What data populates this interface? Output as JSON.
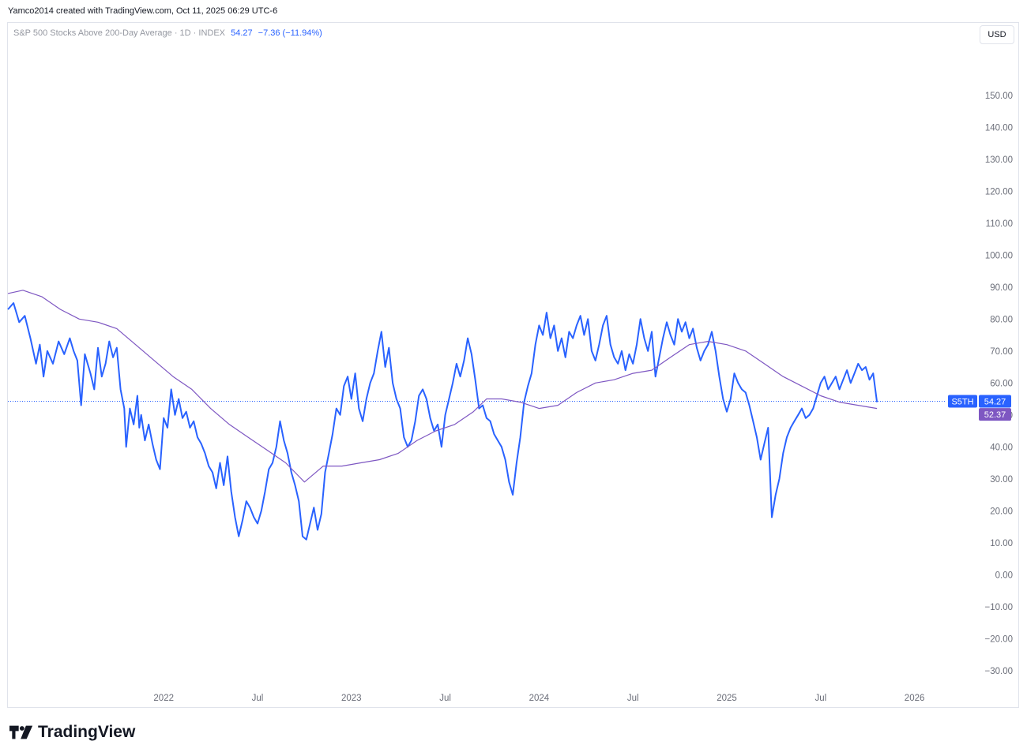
{
  "credit": "Yamco2014 created with TradingView.com, Oct 11, 2025 06:29 UTC-6",
  "legend": {
    "title": "S&P 500 Stocks Above 200-Day Average · 1D · INDEX",
    "last": "54.27",
    "change": "−7.36 (−11.94%)"
  },
  "currency_button": "USD",
  "brand": "TradingView",
  "colors": {
    "price": "#2962ff",
    "ma": "#7e57c2",
    "grid_border": "#e0e3eb",
    "axis_text": "#6a6d78"
  },
  "chart_data": {
    "type": "line",
    "y_range": [
      -35,
      165
    ],
    "y_ticks": [
      "150.00",
      "140.00",
      "130.00",
      "120.00",
      "110.00",
      "100.00",
      "90.00",
      "80.00",
      "70.00",
      "60.00",
      "50.00",
      "40.00",
      "30.00",
      "20.00",
      "10.00",
      "0.00",
      "−10.00",
      "−20.00",
      "−30.00"
    ],
    "y_tick_values": [
      150,
      140,
      130,
      120,
      110,
      100,
      90,
      80,
      70,
      60,
      50,
      40,
      30,
      20,
      10,
      0,
      -10,
      -20,
      -30
    ],
    "x_range": [
      2021.17,
      2026.17
    ],
    "x_ticks": [
      {
        "label": "2022",
        "t": 2022.0
      },
      {
        "label": "Jul",
        "t": 2022.5
      },
      {
        "label": "2023",
        "t": 2023.0
      },
      {
        "label": "Jul",
        "t": 2023.5
      },
      {
        "label": "2024",
        "t": 2024.0
      },
      {
        "label": "Jul",
        "t": 2024.5
      },
      {
        "label": "2025",
        "t": 2025.0
      },
      {
        "label": "Jul",
        "t": 2025.5
      },
      {
        "label": "2026",
        "t": 2026.0
      }
    ],
    "current_line_value": 54.27,
    "series": [
      {
        "name": "S5TH",
        "label_value": "54.27",
        "color": "#2962ff",
        "points": [
          [
            2021.17,
            83
          ],
          [
            2021.2,
            85
          ],
          [
            2021.23,
            79
          ],
          [
            2021.26,
            81
          ],
          [
            2021.29,
            74
          ],
          [
            2021.32,
            66
          ],
          [
            2021.34,
            72
          ],
          [
            2021.36,
            62
          ],
          [
            2021.38,
            70
          ],
          [
            2021.41,
            66
          ],
          [
            2021.44,
            73
          ],
          [
            2021.47,
            69
          ],
          [
            2021.5,
            74
          ],
          [
            2021.52,
            70
          ],
          [
            2021.54,
            67
          ],
          [
            2021.56,
            53
          ],
          [
            2021.58,
            69
          ],
          [
            2021.61,
            63
          ],
          [
            2021.63,
            58
          ],
          [
            2021.65,
            71
          ],
          [
            2021.67,
            62
          ],
          [
            2021.69,
            66
          ],
          [
            2021.71,
            73
          ],
          [
            2021.73,
            68
          ],
          [
            2021.75,
            71
          ],
          [
            2021.77,
            58
          ],
          [
            2021.79,
            52
          ],
          [
            2021.8,
            40
          ],
          [
            2021.82,
            52
          ],
          [
            2021.84,
            47
          ],
          [
            2021.86,
            56
          ],
          [
            2021.87,
            46
          ],
          [
            2021.88,
            50
          ],
          [
            2021.9,
            42
          ],
          [
            2021.92,
            47
          ],
          [
            2021.94,
            41
          ],
          [
            2021.96,
            36
          ],
          [
            2021.98,
            33
          ],
          [
            2022.0,
            49
          ],
          [
            2022.02,
            46
          ],
          [
            2022.04,
            58
          ],
          [
            2022.06,
            50
          ],
          [
            2022.08,
            55
          ],
          [
            2022.1,
            49
          ],
          [
            2022.12,
            51
          ],
          [
            2022.14,
            46
          ],
          [
            2022.16,
            48
          ],
          [
            2022.18,
            43
          ],
          [
            2022.2,
            41
          ],
          [
            2022.22,
            38
          ],
          [
            2022.24,
            34
          ],
          [
            2022.26,
            32
          ],
          [
            2022.28,
            27
          ],
          [
            2022.3,
            35
          ],
          [
            2022.32,
            28
          ],
          [
            2022.34,
            37
          ],
          [
            2022.36,
            26
          ],
          [
            2022.38,
            18
          ],
          [
            2022.4,
            12
          ],
          [
            2022.42,
            17
          ],
          [
            2022.44,
            23
          ],
          [
            2022.46,
            21
          ],
          [
            2022.48,
            18
          ],
          [
            2022.5,
            16
          ],
          [
            2022.52,
            20
          ],
          [
            2022.54,
            26
          ],
          [
            2022.56,
            33
          ],
          [
            2022.58,
            35
          ],
          [
            2022.6,
            40
          ],
          [
            2022.62,
            48
          ],
          [
            2022.64,
            42
          ],
          [
            2022.66,
            38
          ],
          [
            2022.68,
            32
          ],
          [
            2022.7,
            28
          ],
          [
            2022.72,
            23
          ],
          [
            2022.74,
            12
          ],
          [
            2022.76,
            11
          ],
          [
            2022.78,
            16
          ],
          [
            2022.8,
            21
          ],
          [
            2022.82,
            14
          ],
          [
            2022.84,
            19
          ],
          [
            2022.86,
            32
          ],
          [
            2022.88,
            38
          ],
          [
            2022.9,
            44
          ],
          [
            2022.92,
            52
          ],
          [
            2022.94,
            50
          ],
          [
            2022.96,
            59
          ],
          [
            2022.98,
            62
          ],
          [
            2023.0,
            55
          ],
          [
            2023.02,
            63
          ],
          [
            2023.04,
            52
          ],
          [
            2023.06,
            48
          ],
          [
            2023.08,
            55
          ],
          [
            2023.1,
            60
          ],
          [
            2023.12,
            63
          ],
          [
            2023.14,
            70
          ],
          [
            2023.16,
            76
          ],
          [
            2023.18,
            65
          ],
          [
            2023.2,
            71
          ],
          [
            2023.22,
            60
          ],
          [
            2023.24,
            55
          ],
          [
            2023.26,
            52
          ],
          [
            2023.28,
            43
          ],
          [
            2023.3,
            40
          ],
          [
            2023.32,
            42
          ],
          [
            2023.34,
            48
          ],
          [
            2023.36,
            56
          ],
          [
            2023.38,
            58
          ],
          [
            2023.4,
            55
          ],
          [
            2023.42,
            49
          ],
          [
            2023.44,
            45
          ],
          [
            2023.46,
            47
          ],
          [
            2023.48,
            40
          ],
          [
            2023.5,
            50
          ],
          [
            2023.52,
            55
          ],
          [
            2023.54,
            60
          ],
          [
            2023.56,
            66
          ],
          [
            2023.58,
            62
          ],
          [
            2023.6,
            67
          ],
          [
            2023.62,
            74
          ],
          [
            2023.64,
            69
          ],
          [
            2023.66,
            61
          ],
          [
            2023.68,
            52
          ],
          [
            2023.7,
            53
          ],
          [
            2023.72,
            49
          ],
          [
            2023.74,
            48
          ],
          [
            2023.76,
            44
          ],
          [
            2023.78,
            42
          ],
          [
            2023.8,
            40
          ],
          [
            2023.82,
            36
          ],
          [
            2023.84,
            29
          ],
          [
            2023.86,
            25
          ],
          [
            2023.88,
            35
          ],
          [
            2023.9,
            43
          ],
          [
            2023.92,
            54
          ],
          [
            2023.94,
            59
          ],
          [
            2023.96,
            63
          ],
          [
            2023.98,
            72
          ],
          [
            2024.0,
            78
          ],
          [
            2024.02,
            75
          ],
          [
            2024.04,
            82
          ],
          [
            2024.06,
            74
          ],
          [
            2024.08,
            78
          ],
          [
            2024.1,
            70
          ],
          [
            2024.12,
            74
          ],
          [
            2024.14,
            68
          ],
          [
            2024.16,
            76
          ],
          [
            2024.18,
            74
          ],
          [
            2024.2,
            78
          ],
          [
            2024.22,
            81
          ],
          [
            2024.24,
            75
          ],
          [
            2024.26,
            80
          ],
          [
            2024.28,
            70
          ],
          [
            2024.3,
            67
          ],
          [
            2024.32,
            72
          ],
          [
            2024.34,
            78
          ],
          [
            2024.36,
            81
          ],
          [
            2024.38,
            72
          ],
          [
            2024.4,
            68
          ],
          [
            2024.42,
            66
          ],
          [
            2024.44,
            70
          ],
          [
            2024.46,
            64
          ],
          [
            2024.48,
            69
          ],
          [
            2024.5,
            66
          ],
          [
            2024.52,
            72
          ],
          [
            2024.54,
            80
          ],
          [
            2024.56,
            74
          ],
          [
            2024.58,
            70
          ],
          [
            2024.6,
            76
          ],
          [
            2024.62,
            62
          ],
          [
            2024.64,
            68
          ],
          [
            2024.66,
            74
          ],
          [
            2024.68,
            79
          ],
          [
            2024.7,
            75
          ],
          [
            2024.72,
            72
          ],
          [
            2024.74,
            80
          ],
          [
            2024.76,
            76
          ],
          [
            2024.78,
            79
          ],
          [
            2024.8,
            74
          ],
          [
            2024.82,
            77
          ],
          [
            2024.84,
            71
          ],
          [
            2024.86,
            67
          ],
          [
            2024.88,
            70
          ],
          [
            2024.9,
            72
          ],
          [
            2024.92,
            76
          ],
          [
            2024.94,
            70
          ],
          [
            2024.96,
            62
          ],
          [
            2024.98,
            55
          ],
          [
            2025.0,
            51
          ],
          [
            2025.02,
            55
          ],
          [
            2025.04,
            63
          ],
          [
            2025.06,
            60
          ],
          [
            2025.08,
            58
          ],
          [
            2025.1,
            57
          ],
          [
            2025.12,
            53
          ],
          [
            2025.14,
            48
          ],
          [
            2025.16,
            43
          ],
          [
            2025.18,
            36
          ],
          [
            2025.2,
            41
          ],
          [
            2025.22,
            46
          ],
          [
            2025.24,
            18
          ],
          [
            2025.26,
            25
          ],
          [
            2025.28,
            30
          ],
          [
            2025.3,
            38
          ],
          [
            2025.32,
            43
          ],
          [
            2025.34,
            46
          ],
          [
            2025.36,
            48
          ],
          [
            2025.38,
            50
          ],
          [
            2025.4,
            52
          ],
          [
            2025.42,
            49
          ],
          [
            2025.44,
            50
          ],
          [
            2025.46,
            52
          ],
          [
            2025.48,
            56
          ],
          [
            2025.5,
            60
          ],
          [
            2025.52,
            62
          ],
          [
            2025.54,
            58
          ],
          [
            2025.56,
            60
          ],
          [
            2025.58,
            62
          ],
          [
            2025.6,
            58
          ],
          [
            2025.62,
            61
          ],
          [
            2025.64,
            64
          ],
          [
            2025.66,
            60
          ],
          [
            2025.68,
            63
          ],
          [
            2025.7,
            66
          ],
          [
            2025.72,
            64
          ],
          [
            2025.74,
            65
          ],
          [
            2025.76,
            61
          ],
          [
            2025.78,
            63
          ],
          [
            2025.8,
            54
          ]
        ]
      },
      {
        "name": "MA",
        "label_value": "52.37",
        "color": "#7e57c2",
        "points": [
          [
            2021.17,
            88
          ],
          [
            2021.25,
            89
          ],
          [
            2021.35,
            87
          ],
          [
            2021.45,
            83
          ],
          [
            2021.55,
            80
          ],
          [
            2021.65,
            79
          ],
          [
            2021.75,
            77
          ],
          [
            2021.85,
            72
          ],
          [
            2021.95,
            67
          ],
          [
            2022.05,
            62
          ],
          [
            2022.15,
            58
          ],
          [
            2022.25,
            52
          ],
          [
            2022.35,
            47
          ],
          [
            2022.45,
            43
          ],
          [
            2022.55,
            39
          ],
          [
            2022.65,
            35
          ],
          [
            2022.75,
            29
          ],
          [
            2022.85,
            34
          ],
          [
            2022.95,
            34
          ],
          [
            2023.05,
            35
          ],
          [
            2023.15,
            36
          ],
          [
            2023.25,
            38
          ],
          [
            2023.35,
            42
          ],
          [
            2023.45,
            45
          ],
          [
            2023.55,
            47
          ],
          [
            2023.65,
            51
          ],
          [
            2023.72,
            55
          ],
          [
            2023.8,
            55
          ],
          [
            2023.9,
            54
          ],
          [
            2024.0,
            52
          ],
          [
            2024.1,
            53
          ],
          [
            2024.2,
            57
          ],
          [
            2024.3,
            60
          ],
          [
            2024.4,
            61
          ],
          [
            2024.5,
            63
          ],
          [
            2024.6,
            64
          ],
          [
            2024.7,
            68
          ],
          [
            2024.8,
            72
          ],
          [
            2024.9,
            73
          ],
          [
            2025.0,
            72
          ],
          [
            2025.1,
            70
          ],
          [
            2025.2,
            66
          ],
          [
            2025.3,
            62
          ],
          [
            2025.4,
            59
          ],
          [
            2025.5,
            56
          ],
          [
            2025.6,
            54
          ],
          [
            2025.7,
            53
          ],
          [
            2025.8,
            52
          ]
        ]
      }
    ]
  }
}
